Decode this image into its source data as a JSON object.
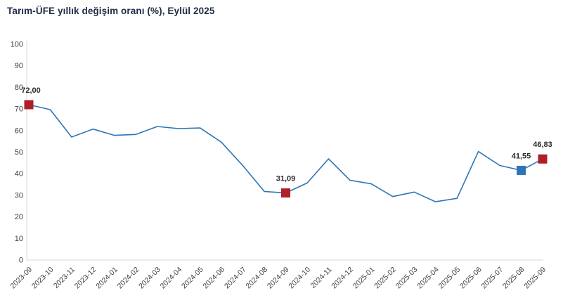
{
  "chart_data": {
    "type": "line",
    "title": "Tarım-ÜFE yıllık değişim oranı (%), Eylül 2025",
    "categories": [
      "2023-09",
      "2023-10",
      "2023-11",
      "2023-12",
      "2024-01",
      "2024-02",
      "2024-03",
      "2024-04",
      "2024-05",
      "2024-06",
      "2024-07",
      "2024-08",
      "2024-09",
      "2024-10",
      "2024-11",
      "2024-12",
      "2025-01",
      "2025-02",
      "2025-03",
      "2025-04",
      "2025-05",
      "2025-06",
      "2025-07",
      "2025-08",
      "2025-09"
    ],
    "values": [
      72.0,
      69.7,
      57.0,
      60.7,
      57.8,
      58.2,
      61.9,
      60.9,
      61.2,
      54.6,
      43.7,
      31.8,
      31.09,
      35.7,
      46.9,
      37.0,
      35.3,
      29.4,
      31.5,
      27.0,
      28.6,
      50.3,
      43.8,
      41.55,
      46.83
    ],
    "ylim": [
      0,
      100
    ],
    "ytick_step": 10,
    "ytick_labels": [
      "0",
      "10",
      "20",
      "30",
      "40",
      "50",
      "60",
      "70",
      "80",
      "90",
      "100"
    ],
    "grid": false,
    "legend_position": "none",
    "line_color": "#2e75b6",
    "axis_color": "#d9d9d9",
    "tick_label_color": "#404040",
    "annotations": [
      {
        "index": 0,
        "label": "72,00",
        "marker_color": "#b01e28"
      },
      {
        "index": 12,
        "label": "31,09",
        "marker_color": "#b01e28"
      },
      {
        "index": 23,
        "label": "41,55",
        "marker_color": "#2e75b6"
      },
      {
        "index": 24,
        "label": "46,83",
        "marker_color": "#b01e28"
      }
    ]
  }
}
